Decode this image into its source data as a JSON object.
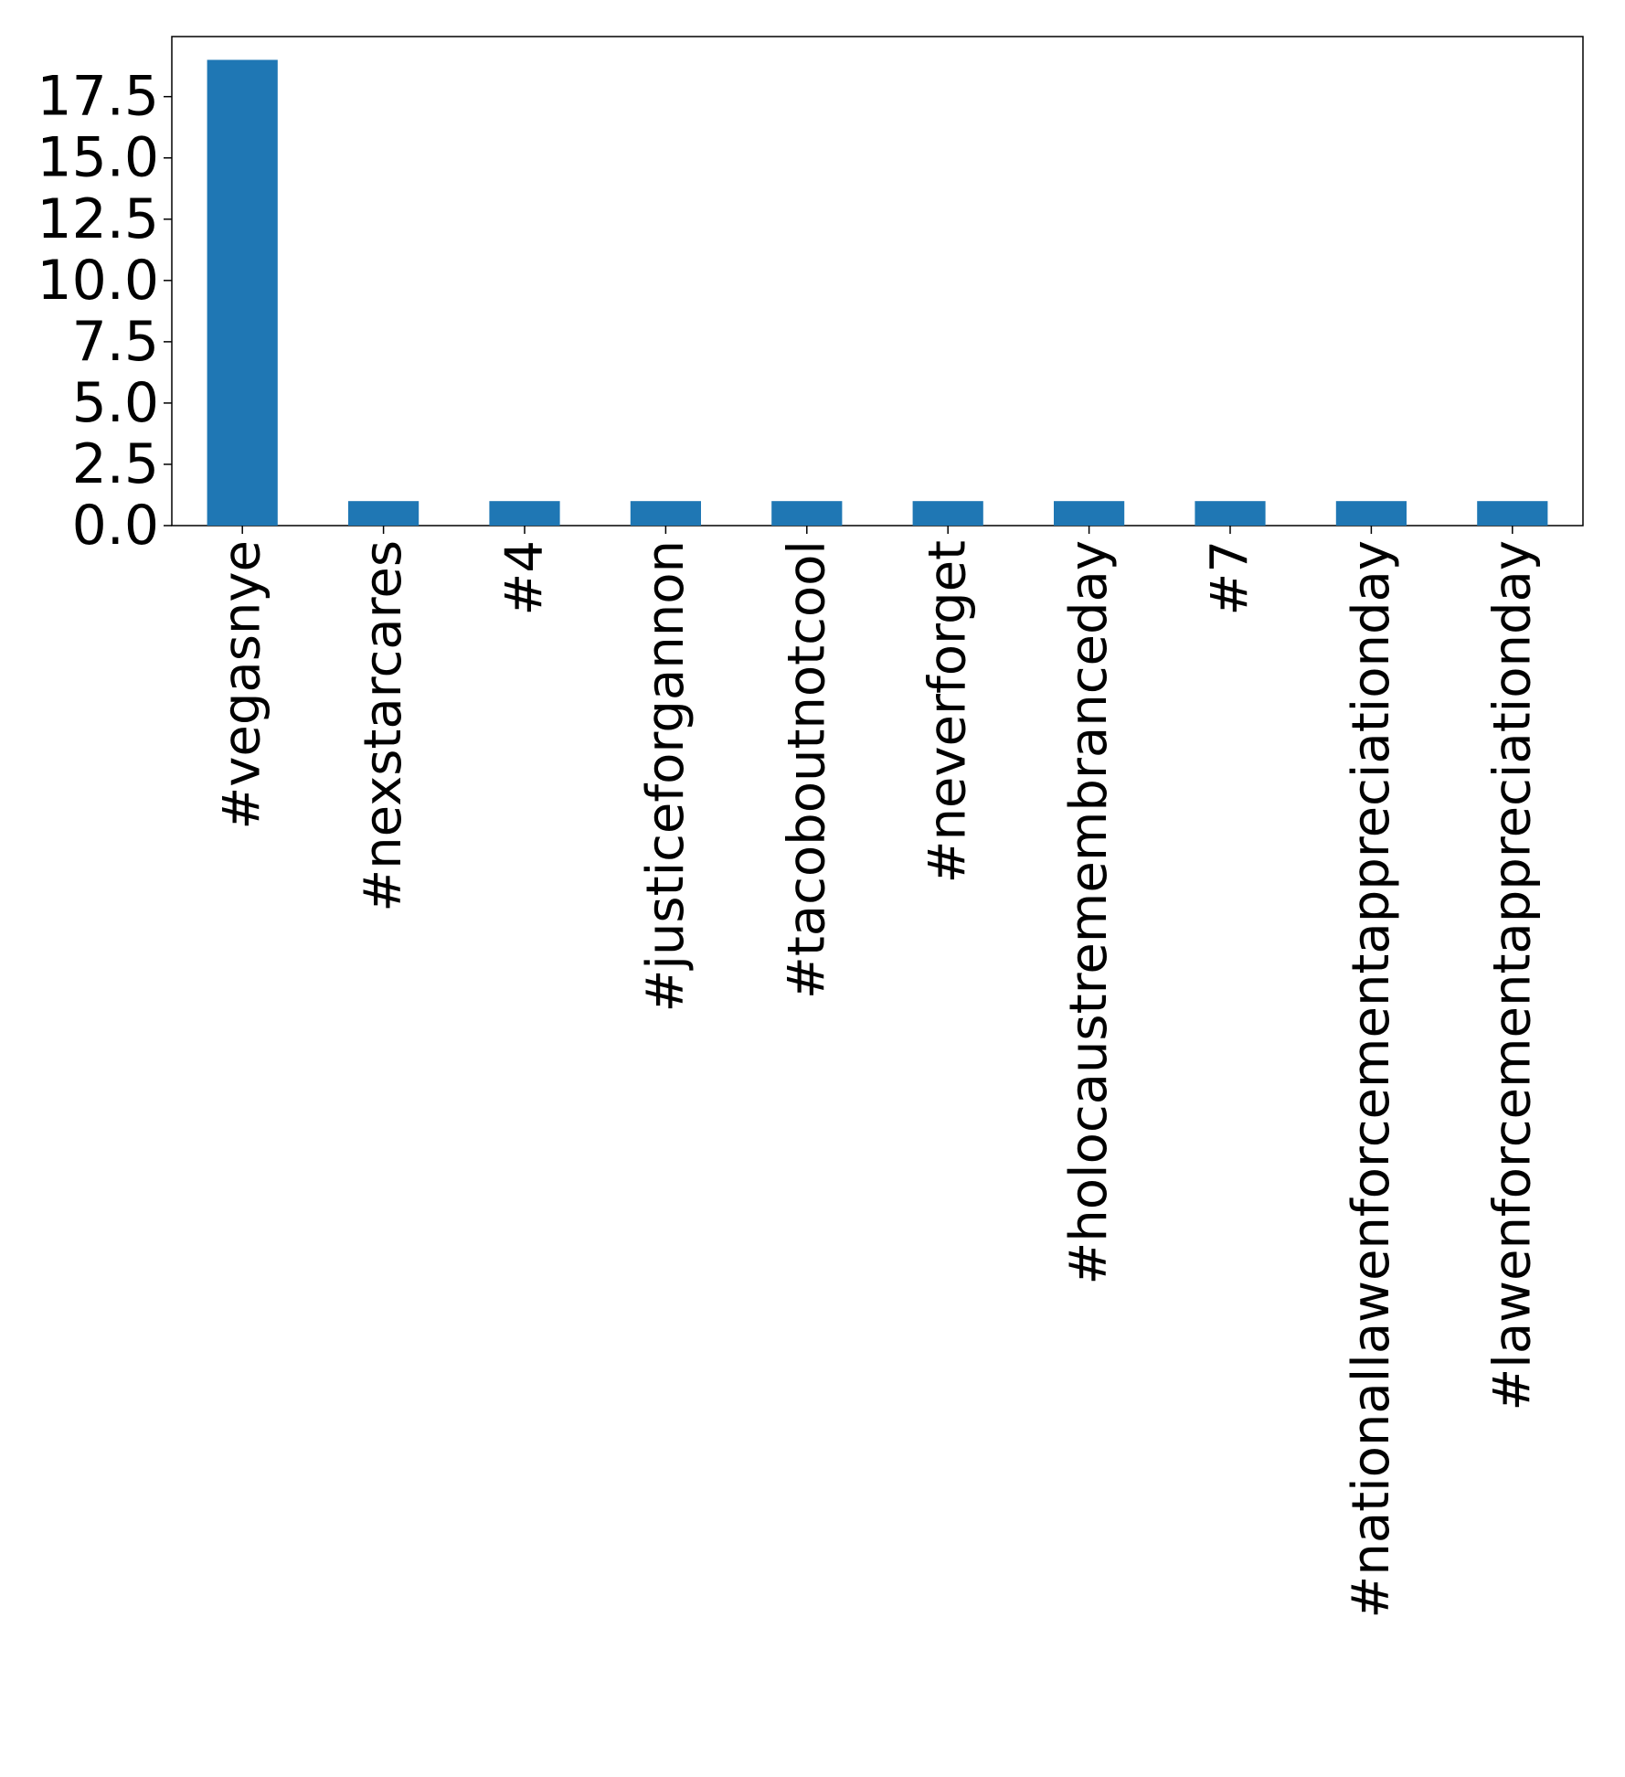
{
  "chart_data": {
    "type": "bar",
    "categories": [
      "#vegasnye",
      "#nexstarcares",
      "#4",
      "#justiceforgannon",
      "#tacoboutnotcool",
      "#neverforget",
      "#holocaustremembranceday",
      "#7",
      "#nationallawenforcementappreciationday",
      "#lawenforcementappreciationday"
    ],
    "values": [
      19,
      1,
      1,
      1,
      1,
      1,
      1,
      1,
      1,
      1
    ],
    "color": "#1f77b4",
    "ylim": [
      0,
      19.95
    ],
    "yticks": [
      {
        "value": 0,
        "label": "0.0"
      },
      2.5,
      {
        "value": 5,
        "label": "5.0"
      },
      7.5,
      {
        "value": 10,
        "label": "10.0"
      },
      12.5,
      {
        "value": 15,
        "label": "15.0"
      },
      17.5
    ],
    "grid": false
  }
}
